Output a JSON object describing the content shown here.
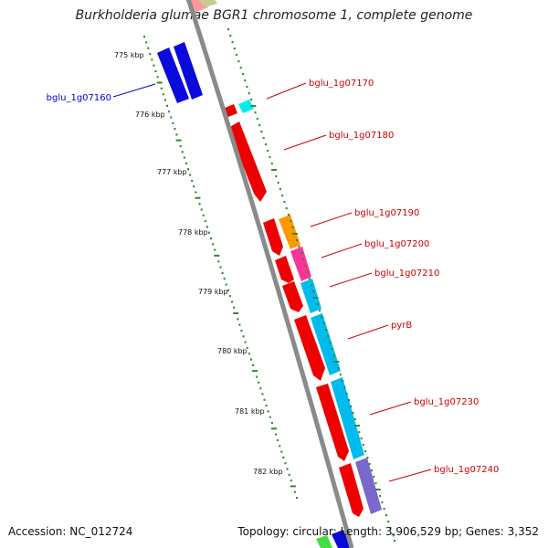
{
  "title": "Burkholderia glumae BGR1 chromosome 1, complete genome",
  "footer": {
    "accession": "Accession: NC_012724",
    "stats": "Topology: circular; Length: 3,906,529 bp; Genes: 3,352"
  },
  "colors": {
    "backbone": "#8a8a8a",
    "tick": "#2e8b2e",
    "label_red": "#cc0000",
    "label_blue": "#0000cc"
  },
  "kbp_labels": [
    "775 kbp",
    "776 kbp",
    "777 kbp",
    "778 kbp",
    "779 kbp",
    "780 kbp",
    "781 kbp",
    "782 kbp"
  ],
  "gene_labels": [
    {
      "text": "bglu_1g07160",
      "color": "blue"
    },
    {
      "text": "bglu_1g07170",
      "color": "red"
    },
    {
      "text": "bglu_1g07180",
      "color": "red"
    },
    {
      "text": "bglu_1g07190",
      "color": "red"
    },
    {
      "text": "bglu_1g07200",
      "color": "red"
    },
    {
      "text": "bglu_1g07210",
      "color": "red"
    },
    {
      "text": "pyrB",
      "color": "red"
    },
    {
      "text": "bglu_1g07230",
      "color": "red"
    },
    {
      "text": "bglu_1g07240",
      "color": "red"
    }
  ]
}
